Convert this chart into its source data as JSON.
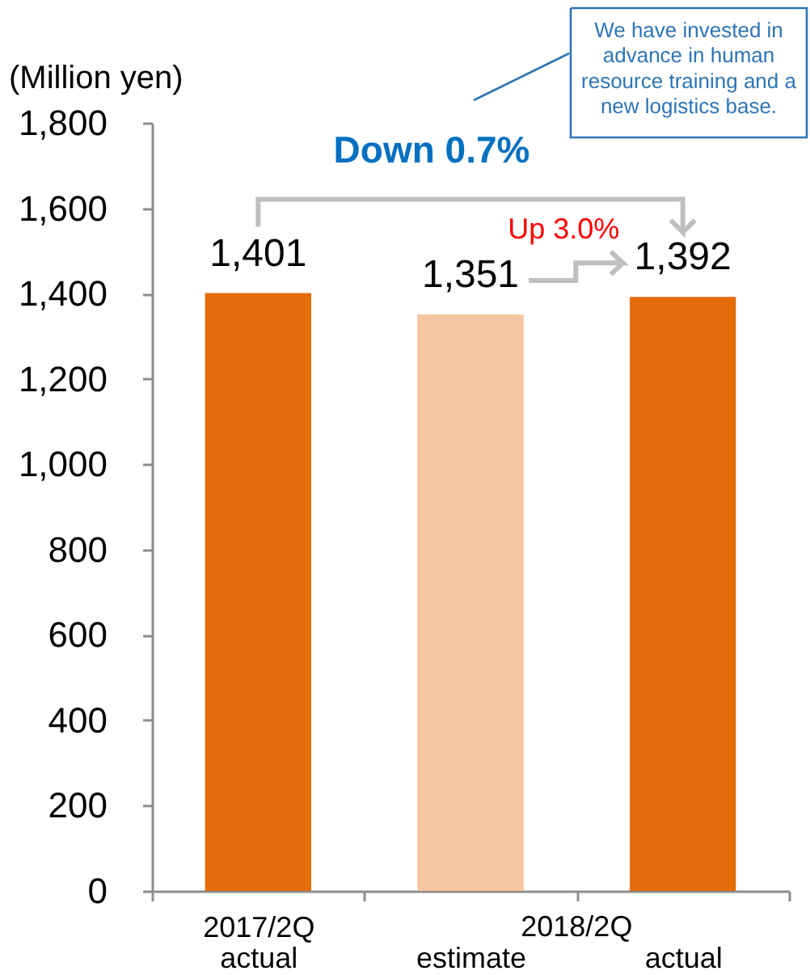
{
  "chart_data": {
    "type": "bar",
    "ylabel": "(Million yen)",
    "categories": [
      "2017/2Q actual",
      "estimate",
      "actual"
    ],
    "values": [
      1401,
      1351,
      1392
    ],
    "colors": [
      "#e46c0a",
      "#f5c59f",
      "#e46c0a"
    ],
    "value_labels": [
      "1,401",
      "1,351",
      "1,392"
    ],
    "ylim": [
      0,
      1800
    ],
    "yticks": [
      0,
      200,
      400,
      600,
      800,
      {
        "value": 1000,
        "label": "1,000"
      },
      {
        "value": 1200,
        "label": "1,200"
      },
      {
        "value": 1400,
        "label": "1,400"
      },
      {
        "value": 1600,
        "label": "1,600"
      },
      {
        "value": 1800,
        "label": "1,800"
      }
    ],
    "grid": false,
    "annotations": [
      "We have invested in advance in human resource training and a new logistics base.",
      "Down 0.7%",
      "Up 3.0%",
      "2018/2Q"
    ]
  }
}
